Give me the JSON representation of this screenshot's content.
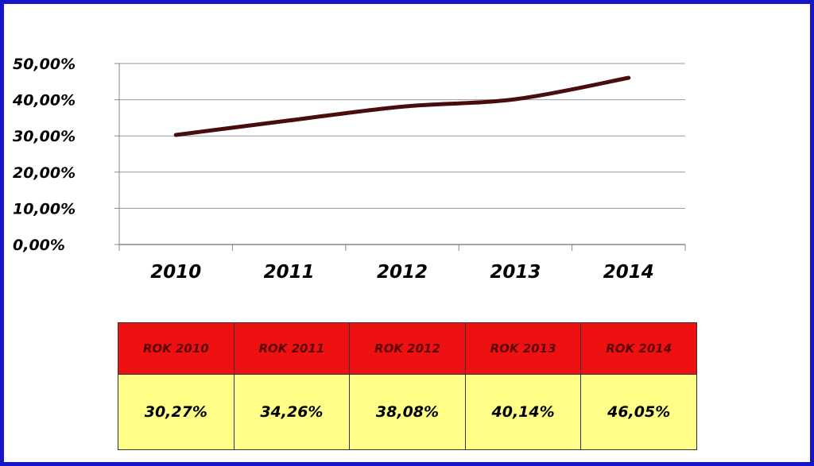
{
  "colors": {
    "frame": "#1616c8",
    "line": "#4a0d0d",
    "grid": "#999999",
    "header_bg": "#ee1111",
    "cell_bg": "#ffff88"
  },
  "chart_data": {
    "type": "line",
    "title": "",
    "xlabel": "",
    "ylabel": "",
    "categories": [
      "2010",
      "2011",
      "2012",
      "2013",
      "2014"
    ],
    "series": [
      {
        "values": [
          30.27,
          34.26,
          38.08,
          40.14,
          46.05
        ]
      }
    ],
    "ylim": [
      0,
      50
    ],
    "yticks": [
      {
        "value": 0,
        "label": "0,00%"
      },
      {
        "value": 10,
        "label": "10,00%"
      },
      {
        "value": 20,
        "label": "20,00%"
      },
      {
        "value": 30,
        "label": "30,00%"
      },
      {
        "value": 40,
        "label": "40,00%"
      },
      {
        "value": 50,
        "label": "50,00%"
      }
    ],
    "grid": true,
    "legend": "none"
  },
  "table": {
    "headers": [
      "ROK 2010",
      "ROK 2011",
      "ROK 2012",
      "ROK 2013",
      "ROK 2014"
    ],
    "values": [
      "30,27%",
      "34,26%",
      "38,08%",
      "40,14%",
      "46,05%"
    ]
  }
}
